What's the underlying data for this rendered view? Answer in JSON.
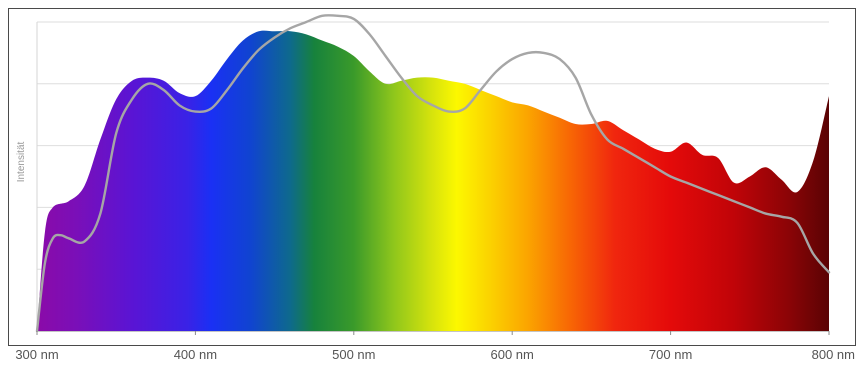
{
  "chart_data": {
    "type": "area",
    "title": "",
    "xlabel": "",
    "ylabel": "Intensität",
    "xlim": [
      300,
      800
    ],
    "ylim": [
      0,
      100
    ],
    "grid": "horizontal",
    "legend": "none",
    "x_ticks": [
      {
        "value": 300,
        "label": "300 nm"
      },
      {
        "value": 400,
        "label": "400 nm"
      },
      {
        "value": 500,
        "label": "500 nm"
      },
      {
        "value": 600,
        "label": "600 nm"
      },
      {
        "value": 700,
        "label": "700 nm"
      },
      {
        "value": 800,
        "label": "800 nm"
      }
    ],
    "y_gridlines": [
      20,
      40,
      60,
      80,
      100
    ],
    "series": [
      {
        "kind": "area",
        "fill": "visible-spectrum-gradient",
        "x": [
          300,
          305,
          310,
          320,
          330,
          340,
          350,
          360,
          370,
          380,
          390,
          400,
          410,
          420,
          430,
          440,
          450,
          460,
          470,
          480,
          490,
          500,
          510,
          520,
          530,
          540,
          550,
          560,
          570,
          580,
          590,
          600,
          610,
          620,
          630,
          640,
          650,
          660,
          670,
          680,
          690,
          700,
          710,
          720,
          730,
          740,
          750,
          760,
          770,
          780,
          790,
          800
        ],
        "values": [
          0,
          32,
          40,
          42,
          47,
          62,
          75,
          81,
          82,
          81,
          77,
          76,
          81,
          88,
          94,
          97,
          97,
          97,
          96,
          94,
          92,
          89,
          84,
          80,
          81,
          82,
          82,
          81,
          80,
          78,
          76,
          74,
          73,
          71,
          69,
          67,
          67,
          68,
          65,
          62,
          59,
          58,
          61,
          57,
          56,
          48,
          50,
          53,
          49,
          45,
          55,
          76
        ]
      },
      {
        "kind": "line",
        "color": "#a6a6a6",
        "x": [
          300,
          305,
          310,
          315,
          320,
          330,
          340,
          350,
          360,
          370,
          380,
          390,
          400,
          410,
          420,
          430,
          440,
          450,
          460,
          470,
          480,
          490,
          500,
          510,
          520,
          530,
          540,
          550,
          560,
          570,
          580,
          590,
          600,
          610,
          620,
          630,
          640,
          650,
          660,
          670,
          680,
          690,
          700,
          710,
          720,
          730,
          740,
          750,
          760,
          770,
          780,
          790,
          800
        ],
        "values": [
          0,
          22,
          30,
          31,
          30,
          29,
          38,
          64,
          75,
          80,
          78,
          73,
          71,
          72,
          78,
          85,
          91,
          95,
          98,
          100,
          102,
          102,
          101,
          96,
          89,
          82,
          76,
          73,
          71,
          72,
          78,
          84,
          88,
          90,
          90,
          88,
          82,
          70,
          62,
          59,
          56,
          53,
          50,
          48,
          46,
          44,
          42,
          40,
          38,
          37,
          35,
          25,
          19
        ]
      }
    ]
  }
}
